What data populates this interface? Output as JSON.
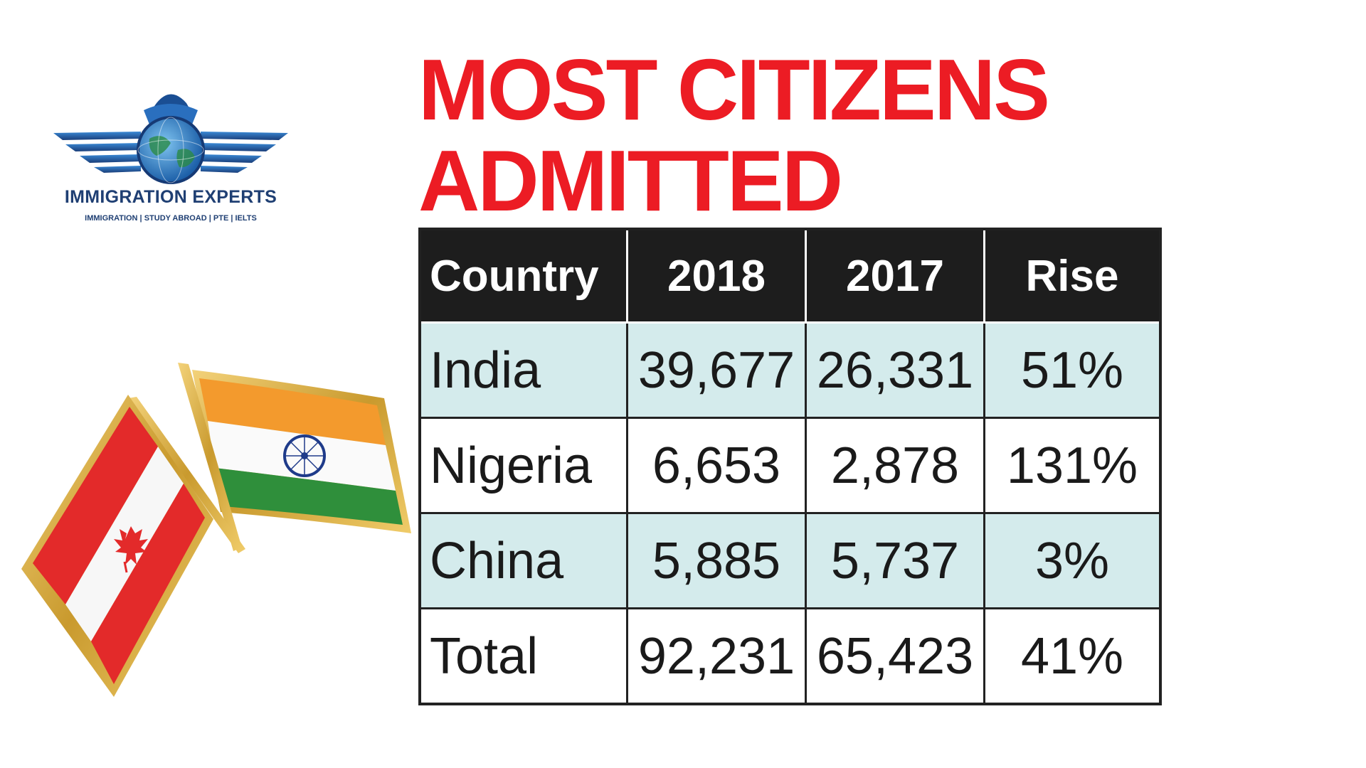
{
  "logo": {
    "name": "IMMIGRATION EXPERTS",
    "tagline": "IMMIGRATION | STUDY ABROAD | PTE | IELTS",
    "icon": "globe-with-wings-and-eagle"
  },
  "flags": {
    "left": "Canada",
    "right": "India",
    "icon": "crossed-flags-pin"
  },
  "title": {
    "line1": "MOST CITIZENS",
    "line2": "ADMITTED"
  },
  "colors": {
    "title": "#ec1c24",
    "header_bg": "#1d1d1d",
    "row_shade": "#d4ebec",
    "logo_blue": "#1f3f73"
  },
  "chart_data": {
    "type": "table",
    "title": "MOST CITIZENS ADMITTED",
    "columns": [
      "Country",
      "2018",
      "2017",
      "Rise"
    ],
    "rows": [
      [
        "India",
        "39,677",
        "26,331",
        "51%"
      ],
      [
        "Nigeria",
        "6,653",
        "2,878",
        "131%"
      ],
      [
        "China",
        "5,885",
        "5,737",
        "3%"
      ],
      [
        "Total",
        "92,231",
        "65,423",
        "41%"
      ]
    ]
  }
}
